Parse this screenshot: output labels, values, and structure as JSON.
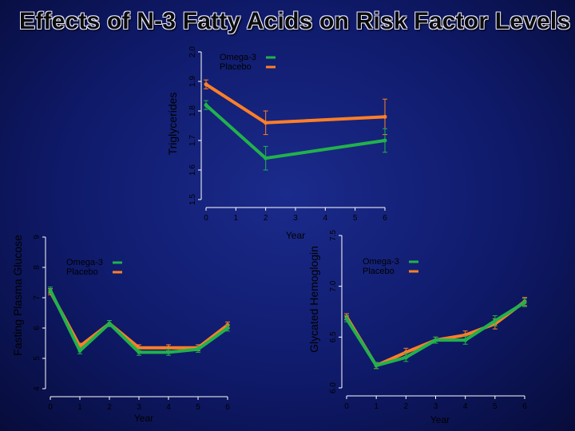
{
  "title": "Effects of N-3 Fatty Acids on Risk Factor Levels",
  "colors": {
    "omega3": "#22b14c",
    "placebo": "#ff7f27",
    "axis": "#ffffff",
    "text": "#000000"
  },
  "chart_data": [
    {
      "type": "line",
      "id": "triglycerides",
      "ylabel": "Triglycerides",
      "xlabel": "Year",
      "xlim": [
        0,
        6
      ],
      "ylim": [
        1.5,
        2.0
      ],
      "xticks": [
        "0",
        "1",
        "2",
        "3",
        "4",
        "5",
        "6"
      ],
      "yticks": [
        "1.5",
        "1.6",
        "1.7",
        "1.8",
        "1.9",
        "2.0"
      ],
      "legend": "top-left",
      "series": [
        {
          "name": "Omega-3",
          "x": [
            0,
            2,
            6
          ],
          "values": [
            1.82,
            1.64,
            1.7
          ],
          "err": [
            0.015,
            0.04,
            0.04
          ]
        },
        {
          "name": "Placebo",
          "x": [
            0,
            2,
            6
          ],
          "values": [
            1.89,
            1.76,
            1.78
          ],
          "err": [
            0.015,
            0.04,
            0.06
          ]
        }
      ]
    },
    {
      "type": "line",
      "id": "fasting-glucose",
      "ylabel": "Fasting Plasma Glucose",
      "xlabel": "Year",
      "xlim": [
        0,
        6
      ],
      "ylim": [
        4,
        9
      ],
      "xticks": [
        "0",
        "1",
        "2",
        "3",
        "4",
        "5",
        "6"
      ],
      "yticks": [
        "4",
        "5",
        "6",
        "7",
        "8",
        "9"
      ],
      "legend": "top-left",
      "series": [
        {
          "name": "Omega-3",
          "x": [
            0,
            1,
            2,
            3,
            4,
            5,
            6
          ],
          "values": [
            7.25,
            5.25,
            6.15,
            5.2,
            5.2,
            5.3,
            6.0
          ],
          "err": [
            0.1,
            0.1,
            0.1,
            0.1,
            0.1,
            0.1,
            0.1
          ]
        },
        {
          "name": "Placebo",
          "x": [
            0,
            1,
            2,
            3,
            4,
            5,
            6
          ],
          "values": [
            7.2,
            5.4,
            6.15,
            5.35,
            5.35,
            5.35,
            6.1
          ],
          "err": [
            0.1,
            0.1,
            0.1,
            0.1,
            0.1,
            0.1,
            0.1
          ]
        }
      ]
    },
    {
      "type": "line",
      "id": "glycated-hemoglobin",
      "ylabel": "Glycated Hemoglogin",
      "xlabel": "Year",
      "xlim": [
        0,
        6
      ],
      "ylim": [
        6.0,
        7.5
      ],
      "xticks": [
        "0",
        "1",
        "2",
        "3",
        "4",
        "5",
        "6"
      ],
      "yticks": [
        "6.0",
        "6.5",
        "7.0",
        "7.5"
      ],
      "legend": "top-right",
      "series": [
        {
          "name": "Omega-3",
          "x": [
            0,
            1,
            2,
            3,
            4,
            5,
            6
          ],
          "values": [
            6.68,
            6.22,
            6.3,
            6.47,
            6.47,
            6.66,
            6.84
          ],
          "err": [
            0.03,
            0.03,
            0.04,
            0.03,
            0.04,
            0.05,
            0.04
          ]
        },
        {
          "name": "Placebo",
          "x": [
            0,
            1,
            2,
            3,
            4,
            5,
            6
          ],
          "values": [
            6.7,
            6.22,
            6.35,
            6.47,
            6.52,
            6.63,
            6.85
          ],
          "err": [
            0.03,
            0.03,
            0.04,
            0.03,
            0.04,
            0.05,
            0.04
          ]
        }
      ]
    }
  ]
}
